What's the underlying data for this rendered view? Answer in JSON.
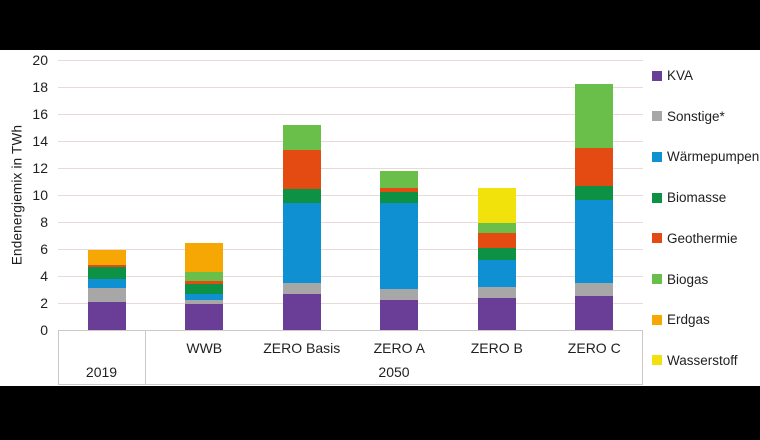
{
  "figure": {
    "band_color": "#000000",
    "panel_color": "#ffffff",
    "text_color": "#1f1f1f",
    "gridline_color": "#e9dada",
    "axis_border_color": "#cfc6c6"
  },
  "chart_data": {
    "type": "bar",
    "subtype": "stacked-vertical",
    "title": "",
    "ylabel": "Endenergiemix in TWh",
    "xlabel": "",
    "ylim": [
      0,
      20
    ],
    "yticks": [
      0,
      2,
      4,
      6,
      8,
      10,
      12,
      14,
      16,
      18,
      20
    ],
    "grid": true,
    "legend_position": "right",
    "categories": [
      "2019",
      "WWB",
      "ZERO Basis",
      "ZERO A",
      "ZERO B",
      "ZERO C"
    ],
    "x_groups": [
      {
        "label": "2019",
        "span": 1
      },
      {
        "label": "2050",
        "span": 5
      }
    ],
    "series": [
      {
        "name": "KVA",
        "color": "#6a3d96",
        "values": [
          2.05,
          1.9,
          2.7,
          2.2,
          2.4,
          2.5
        ]
      },
      {
        "name": "Sonstige*",
        "color": "#a7a7a7",
        "values": [
          1.05,
          0.35,
          0.75,
          0.85,
          0.75,
          1.0
        ]
      },
      {
        "name": "Wärmepumpen",
        "color": "#0e90d3",
        "values": [
          0.7,
          0.4,
          5.95,
          6.35,
          2.0,
          6.1
        ]
      },
      {
        "name": "Biomasse",
        "color": "#0d9145",
        "values": [
          0.9,
          0.75,
          1.05,
          0.85,
          0.95,
          1.05
        ]
      },
      {
        "name": "Geothermie",
        "color": "#e44b12",
        "values": [
          0.15,
          0.2,
          2.85,
          0.25,
          1.05,
          2.8
        ]
      },
      {
        "name": "Biogas",
        "color": "#6abe4a",
        "values": [
          0.0,
          0.7,
          1.85,
          1.3,
          0.75,
          4.75
        ]
      },
      {
        "name": "Erdgas",
        "color": "#f7a703",
        "values": [
          1.05,
          2.15,
          0.0,
          0.0,
          0.0,
          0.0
        ]
      },
      {
        "name": "Wasserstoff",
        "color": "#f2e20b",
        "values": [
          0.0,
          0.0,
          0.0,
          0.0,
          2.6,
          0.0
        ]
      }
    ],
    "totals": [
      5.9,
      6.45,
      15.15,
      11.8,
      10.5,
      18.2
    ]
  }
}
